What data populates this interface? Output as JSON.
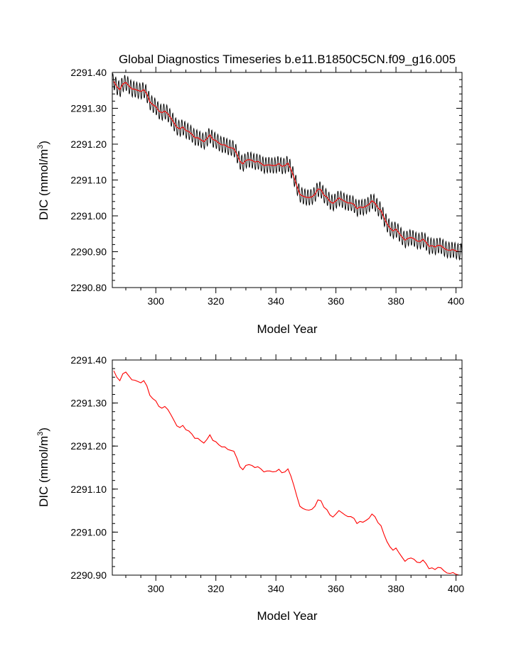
{
  "title": "Global Diagnostics Timeseries b.e11.B1850C5CN.f09_g16.005",
  "colors": {
    "monthly_line": "#000000",
    "annual_line": "#ff0000",
    "axes": "#000000"
  },
  "chart_data": [
    {
      "type": "line",
      "name": "top-panel",
      "xlabel": "Model Year",
      "ylabel": "DIC (mmol/m",
      "ylabel_sup": "3",
      "ylabel_close": ")",
      "xlim": [
        285.5,
        402
      ],
      "ylim": [
        2290.8,
        2291.4
      ],
      "xticks": [
        300,
        320,
        340,
        360,
        380,
        400
      ],
      "xtick_labels": [
        "300",
        "320",
        "340",
        "360",
        "380",
        "400"
      ],
      "yticks": [
        2290.8,
        2290.9,
        2291.0,
        2291.1,
        2291.2,
        2291.3,
        2291.4
      ],
      "ytick_labels": [
        "2290.80",
        "2290.90",
        "2291.00",
        "2291.10",
        "2291.20",
        "2291.30",
        "2291.40"
      ],
      "series": [
        {
          "name": "monthly",
          "color": "#000000",
          "seasonal_amplitude": 0.022,
          "based_on": "annual"
        },
        {
          "name": "annual",
          "color": "#ff0000"
        }
      ]
    },
    {
      "type": "line",
      "name": "bottom-panel",
      "xlabel": "Model Year",
      "ylabel": "DIC (mmol/m",
      "ylabel_sup": "3",
      "ylabel_close": ")",
      "xlim": [
        285.5,
        402
      ],
      "ylim": [
        2290.9,
        2291.4
      ],
      "xticks": [
        300,
        320,
        340,
        360,
        380,
        400
      ],
      "xtick_labels": [
        "300",
        "320",
        "340",
        "360",
        "380",
        "400"
      ],
      "yticks": [
        2290.9,
        2291.0,
        2291.1,
        2291.2,
        2291.3,
        2291.4
      ],
      "ytick_labels": [
        "2290.90",
        "2291.00",
        "2291.10",
        "2291.20",
        "2291.30",
        "2291.40"
      ],
      "series": [
        {
          "name": "annual",
          "color": "#ff0000"
        }
      ]
    }
  ],
  "annual_series": {
    "years": [
      286,
      287,
      288,
      289,
      290,
      291,
      292,
      293,
      294,
      295,
      296,
      297,
      298,
      299,
      300,
      301,
      302,
      303,
      304,
      305,
      306,
      307,
      308,
      309,
      310,
      311,
      312,
      313,
      314,
      315,
      316,
      317,
      318,
      319,
      320,
      321,
      322,
      323,
      324,
      325,
      326,
      327,
      328,
      329,
      330,
      331,
      332,
      333,
      334,
      335,
      336,
      337,
      338,
      339,
      340,
      341,
      342,
      343,
      344,
      345,
      346,
      347,
      348,
      349,
      350,
      351,
      352,
      353,
      354,
      355,
      356,
      357,
      358,
      359,
      360,
      361,
      362,
      363,
      364,
      365,
      366,
      367,
      368,
      369,
      370,
      371,
      372,
      373,
      374,
      375,
      376,
      377,
      378,
      379,
      380,
      381,
      382,
      383,
      384,
      385,
      386,
      387,
      388,
      389,
      390,
      391,
      392,
      393,
      394,
      395,
      396,
      397,
      398,
      399,
      400,
      401,
      402
    ],
    "values": [
      2291.375,
      2291.36,
      2291.352,
      2291.368,
      2291.372,
      2291.363,
      2291.354,
      2291.353,
      2291.35,
      2291.347,
      2291.352,
      2291.34,
      2291.318,
      2291.31,
      2291.305,
      2291.292,
      2291.288,
      2291.292,
      2291.285,
      2291.273,
      2291.26,
      2291.247,
      2291.243,
      2291.248,
      2291.238,
      2291.235,
      2291.228,
      2291.218,
      2291.218,
      2291.212,
      2291.207,
      2291.215,
      2291.226,
      2291.213,
      2291.21,
      2291.203,
      2291.198,
      2291.198,
      2291.192,
      2291.19,
      2291.188,
      2291.172,
      2291.152,
      2291.145,
      2291.155,
      2291.157,
      2291.155,
      2291.15,
      2291.152,
      2291.147,
      2291.14,
      2291.142,
      2291.142,
      2291.14,
      2291.141,
      2291.146,
      2291.138,
      2291.14,
      2291.147,
      2291.13,
      2291.108,
      2291.083,
      2291.06,
      2291.055,
      2291.052,
      2291.051,
      2291.053,
      2291.06,
      2291.075,
      2291.073,
      2291.058,
      2291.052,
      2291.04,
      2291.035,
      2291.042,
      2291.05,
      2291.045,
      2291.04,
      2291.036,
      2291.036,
      2291.032,
      2291.02,
      2291.025,
      2291.023,
      2291.027,
      2291.032,
      2291.042,
      2291.036,
      2291.022,
      2291.015,
      2290.995,
      2290.978,
      2290.966,
      2290.958,
      2290.963,
      2290.952,
      2290.942,
      2290.932,
      2290.938,
      2290.94,
      2290.937,
      2290.93,
      2290.929,
      2290.935,
      2290.927,
      2290.915,
      2290.917,
      2290.913,
      2290.918,
      2290.917,
      2290.91,
      2290.905,
      2290.904,
      2290.906,
      2290.902,
      2290.9,
      2290.9
    ]
  }
}
